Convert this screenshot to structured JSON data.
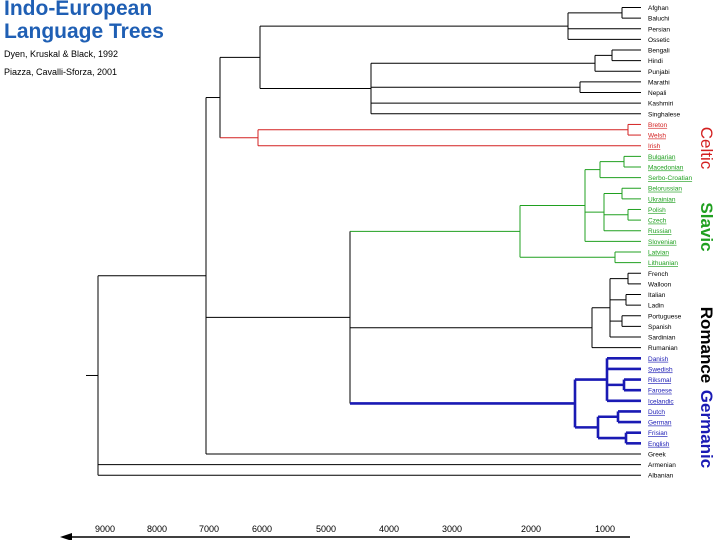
{
  "title_line1": "Indo-European",
  "title_line2": "Language Trees",
  "citation1": "Dyen, Kruskal & Black, 1992",
  "citation2": "Piazza, Cavalli-Sforza, 2001",
  "colors": {
    "title": "#1f5fb4",
    "black": "#000000",
    "celtic": "#d32020",
    "slavic": "#20a020",
    "germanic": "#1a1ab4"
  },
  "groups": {
    "celtic": "Celtic",
    "slavic": "Slavic",
    "romance": "Romance",
    "germanic": "Germanic"
  },
  "languages": [
    {
      "name": "Afghan",
      "color": "black"
    },
    {
      "name": "Baluchi",
      "color": "black"
    },
    {
      "name": "Persian",
      "color": "black"
    },
    {
      "name": "Ossetic",
      "color": "black"
    },
    {
      "name": "Bengali",
      "color": "black"
    },
    {
      "name": "Hindi",
      "color": "black"
    },
    {
      "name": "Punjabi",
      "color": "black"
    },
    {
      "name": "Marathi",
      "color": "black"
    },
    {
      "name": "Nepali",
      "color": "black"
    },
    {
      "name": "Kashmiri",
      "color": "black"
    },
    {
      "name": "Singhalese",
      "color": "black"
    },
    {
      "name": "Breton",
      "color": "celtic"
    },
    {
      "name": "Welsh",
      "color": "celtic"
    },
    {
      "name": "Irish",
      "color": "celtic"
    },
    {
      "name": "Bulgarian",
      "color": "slavic"
    },
    {
      "name": "Macedonian",
      "color": "slavic"
    },
    {
      "name": "Serbo-Croatian",
      "color": "slavic"
    },
    {
      "name": "Belorussian",
      "color": "slavic"
    },
    {
      "name": "Ukrainian",
      "color": "slavic"
    },
    {
      "name": "Polish",
      "color": "slavic"
    },
    {
      "name": "Czech",
      "color": "slavic"
    },
    {
      "name": "Russian",
      "color": "slavic"
    },
    {
      "name": "Slovenian",
      "color": "slavic"
    },
    {
      "name": "Latvian",
      "color": "slavic"
    },
    {
      "name": "Lithuanian",
      "color": "slavic"
    },
    {
      "name": "French",
      "color": "black"
    },
    {
      "name": "Walloon",
      "color": "black"
    },
    {
      "name": "Italian",
      "color": "black"
    },
    {
      "name": "Ladin",
      "color": "black"
    },
    {
      "name": "Portuguese",
      "color": "black"
    },
    {
      "name": "Spanish",
      "color": "black"
    },
    {
      "name": "Sardinian",
      "color": "black"
    },
    {
      "name": "Rumanian",
      "color": "black"
    },
    {
      "name": "Danish",
      "color": "germanic"
    },
    {
      "name": "Swedish",
      "color": "germanic"
    },
    {
      "name": "Riksmal",
      "color": "germanic"
    },
    {
      "name": "Faroese",
      "color": "germanic"
    },
    {
      "name": "Icelandic",
      "color": "germanic"
    },
    {
      "name": "Dutch",
      "color": "germanic"
    },
    {
      "name": "German",
      "color": "germanic"
    },
    {
      "name": "Frisian",
      "color": "germanic"
    },
    {
      "name": "English",
      "color": "germanic"
    },
    {
      "name": "Greek",
      "color": "black"
    },
    {
      "name": "Armenian",
      "color": "black"
    },
    {
      "name": "Albanian",
      "color": "black"
    }
  ],
  "axis_ticks": [
    "9000",
    "8000",
    "7000",
    "6000",
    "5000",
    "4000",
    "3000",
    "2000",
    "1000"
  ]
}
